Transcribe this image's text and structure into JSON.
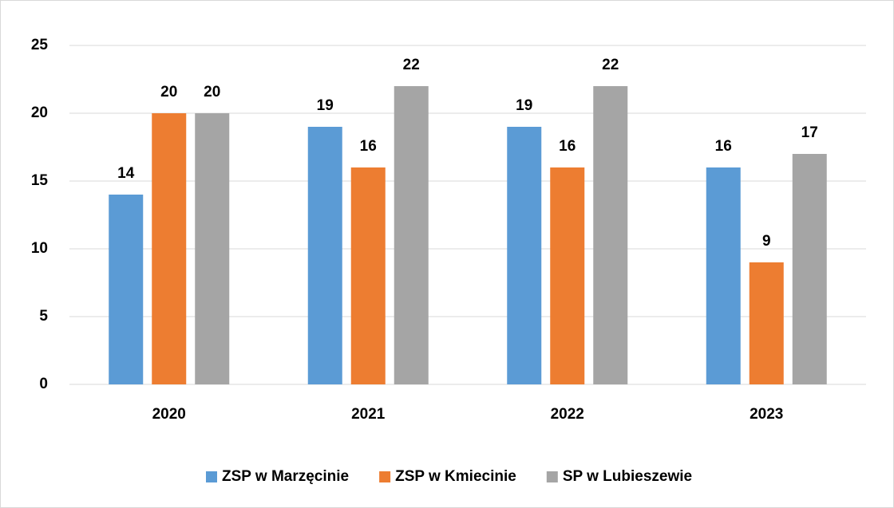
{
  "chart_data": {
    "type": "bar",
    "categories": [
      "2020",
      "2021",
      "2022",
      "2023"
    ],
    "series": [
      {
        "name": "ZSP w Marzęcinie",
        "color": "#5b9bd5",
        "values": [
          14,
          19,
          19,
          16
        ]
      },
      {
        "name": "ZSP w Kmiecinie",
        "color": "#ed7d31",
        "values": [
          20,
          16,
          16,
          9
        ]
      },
      {
        "name": "SP w Lubieszewie",
        "color": "#a5a5a5",
        "values": [
          20,
          22,
          22,
          17
        ]
      }
    ],
    "ylim": [
      0,
      25
    ],
    "yticks": [
      0,
      5,
      10,
      15,
      20,
      25
    ],
    "grid": true,
    "legend": "bottom"
  }
}
